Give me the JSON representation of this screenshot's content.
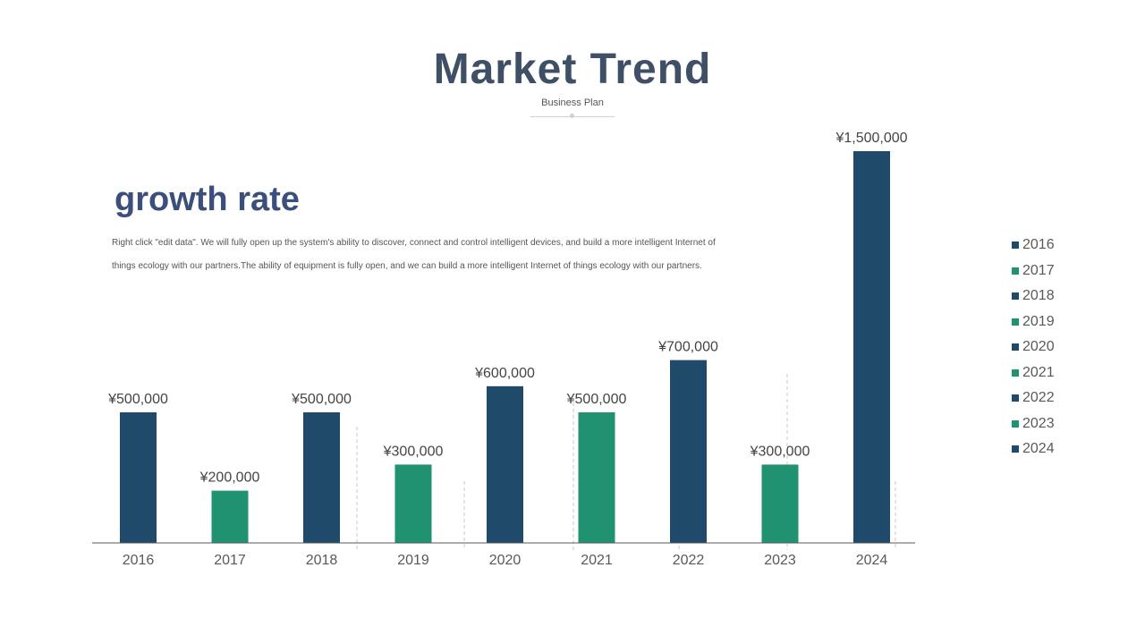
{
  "header": {
    "title": "Market Trend",
    "subtitle": "Business Plan"
  },
  "section": {
    "heading": "growth rate",
    "description": "Right click \"edit data\". We will fully open up the system's ability to discover, connect and control intelligent devices, and build a more intelligent Internet of things ecology with our partners.The ability of equipment is fully open, and we can build a more intelligent Internet of things ecology with our partners."
  },
  "colors": {
    "navy": "#1f4a6a",
    "green": "#209272",
    "title": "#3e4f66",
    "heading": "#3b4f7c"
  },
  "chart_data": {
    "type": "bar",
    "title": "",
    "xlabel": "",
    "ylabel": "",
    "categories": [
      "2016",
      "2017",
      "2018",
      "2019",
      "2020",
      "2021",
      "2022",
      "2023",
      "2024"
    ],
    "values": [
      500000,
      200000,
      500000,
      300000,
      600000,
      500000,
      700000,
      300000,
      1500000
    ],
    "value_labels": [
      "¥500,000",
      "¥200,000",
      "¥500,000",
      "¥300,000",
      "¥600,000",
      "¥500,000",
      "¥700,000",
      "¥300,000",
      "¥1,500,000"
    ],
    "bar_colors": [
      "#1f4a6a",
      "#209272",
      "#1f4a6a",
      "#209272",
      "#1f4a6a",
      "#209272",
      "#1f4a6a",
      "#209272",
      "#1f4a6a"
    ],
    "ylim": [
      0,
      1500000
    ],
    "grid": false,
    "legend": {
      "position": "right",
      "entries": [
        "2016",
        "2017",
        "2018",
        "2019",
        "2020",
        "2021",
        "2022",
        "2023",
        "2024"
      ]
    }
  }
}
